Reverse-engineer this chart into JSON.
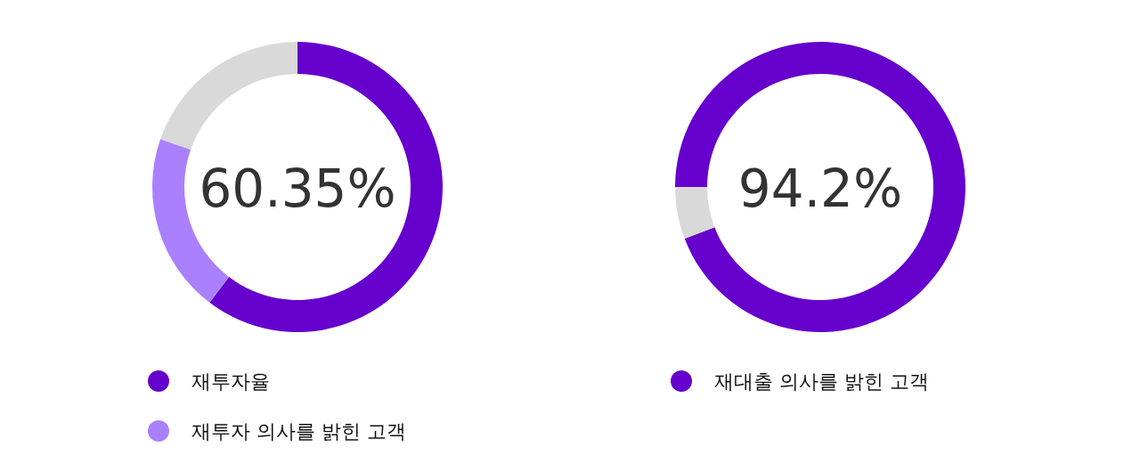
{
  "chart_data": [
    {
      "type": "donut",
      "categories": [
        "재투자율",
        "재투자 의사를 밝힌 고객",
        null
      ],
      "values": [
        60.35,
        20,
        19.65
      ],
      "colors": [
        "#6600cc",
        "#aa80ff",
        "#d9d9d9"
      ],
      "annotations": [
        "60.35%"
      ],
      "legend": "bottom"
    },
    {
      "type": "donut",
      "categories": [
        "재대출 의사를 밝힌 고객",
        null
      ],
      "values": [
        94.2,
        5.8
      ],
      "colors": [
        "#6600cc",
        "#d9d9d9"
      ],
      "annotations": [
        "94.2%"
      ],
      "legend": "bottom"
    }
  ]
}
